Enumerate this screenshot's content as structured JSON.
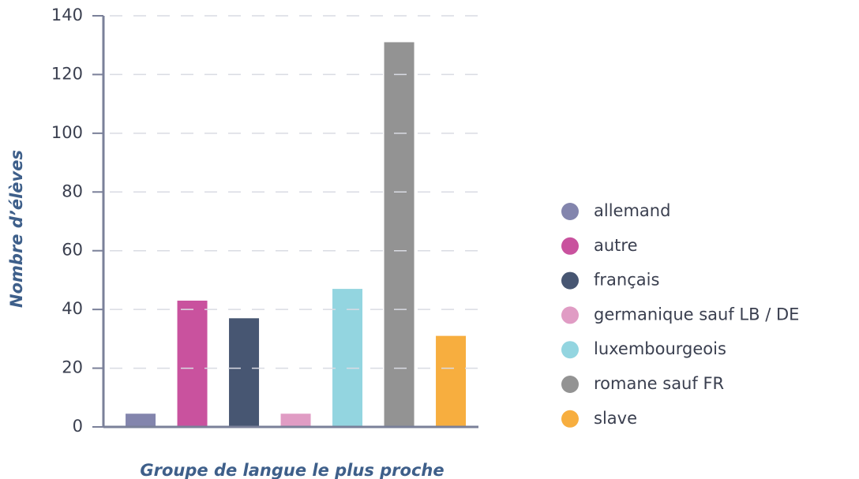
{
  "chart_data": {
    "type": "bar",
    "x_label": "Groupe de langue le plus proche",
    "y_label": "Nombre d’élèves",
    "categories": [
      "allemand",
      "autre",
      "français",
      "germanique sauf LB / DE",
      "luxembourgeois",
      "romane sauf FR",
      "slave"
    ],
    "values": [
      4.5,
      43,
      37,
      4.5,
      47,
      131,
      31
    ],
    "colors": [
      "#8385ad",
      "#c9529e",
      "#475672",
      "#e09cc4",
      "#93d5e0",
      "#939393",
      "#f7ae3f"
    ],
    "ylim": [
      0,
      140
    ],
    "yticks": [
      0,
      20,
      40,
      60,
      80,
      100,
      120,
      140
    ],
    "grid": true,
    "legend": "right"
  }
}
